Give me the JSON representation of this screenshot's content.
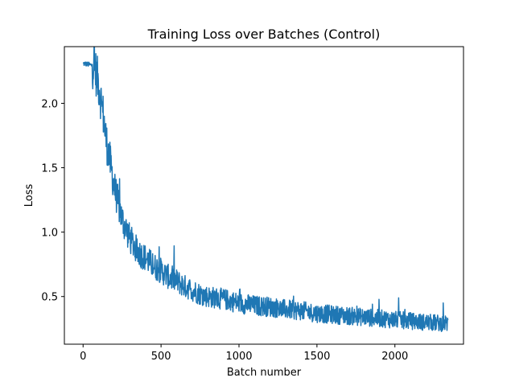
{
  "chart_data": {
    "type": "line",
    "title": "Training Loss over Batches (Control)",
    "xlabel": "Batch number",
    "ylabel": "Loss",
    "xlim": [
      -120,
      2440
    ],
    "ylim": [
      0.13,
      2.44
    ],
    "xticks": [
      0,
      500,
      1000,
      1500,
      2000
    ],
    "yticks": [
      0.5,
      1.0,
      1.5,
      2.0
    ],
    "xtick_labels": [
      "0",
      "500",
      "1000",
      "1500",
      "2000"
    ],
    "ytick_labels": [
      "0.5",
      "1.0",
      "1.5",
      "2.0"
    ],
    "grid": false,
    "series": [
      {
        "color": "#1f77b4",
        "x": [
          0,
          40,
          70,
          80,
          100,
          130,
          150,
          180,
          200,
          250,
          300,
          350,
          400,
          450,
          500,
          550,
          600,
          650,
          700,
          750,
          800,
          850,
          900,
          1000,
          1100,
          1200,
          1300,
          1400,
          1500,
          1600,
          1700,
          1800,
          1900,
          2000,
          2100,
          2200,
          2340
        ],
        "y": [
          2.31,
          2.3,
          2.29,
          2.25,
          2.15,
          1.9,
          1.7,
          1.5,
          1.35,
          1.1,
          0.95,
          0.85,
          0.8,
          0.74,
          0.7,
          0.65,
          0.62,
          0.58,
          0.55,
          0.52,
          0.5,
          0.49,
          0.48,
          0.45,
          0.43,
          0.42,
          0.4,
          0.39,
          0.37,
          0.36,
          0.35,
          0.34,
          0.33,
          0.32,
          0.31,
          0.3,
          0.29
        ]
      }
    ]
  }
}
